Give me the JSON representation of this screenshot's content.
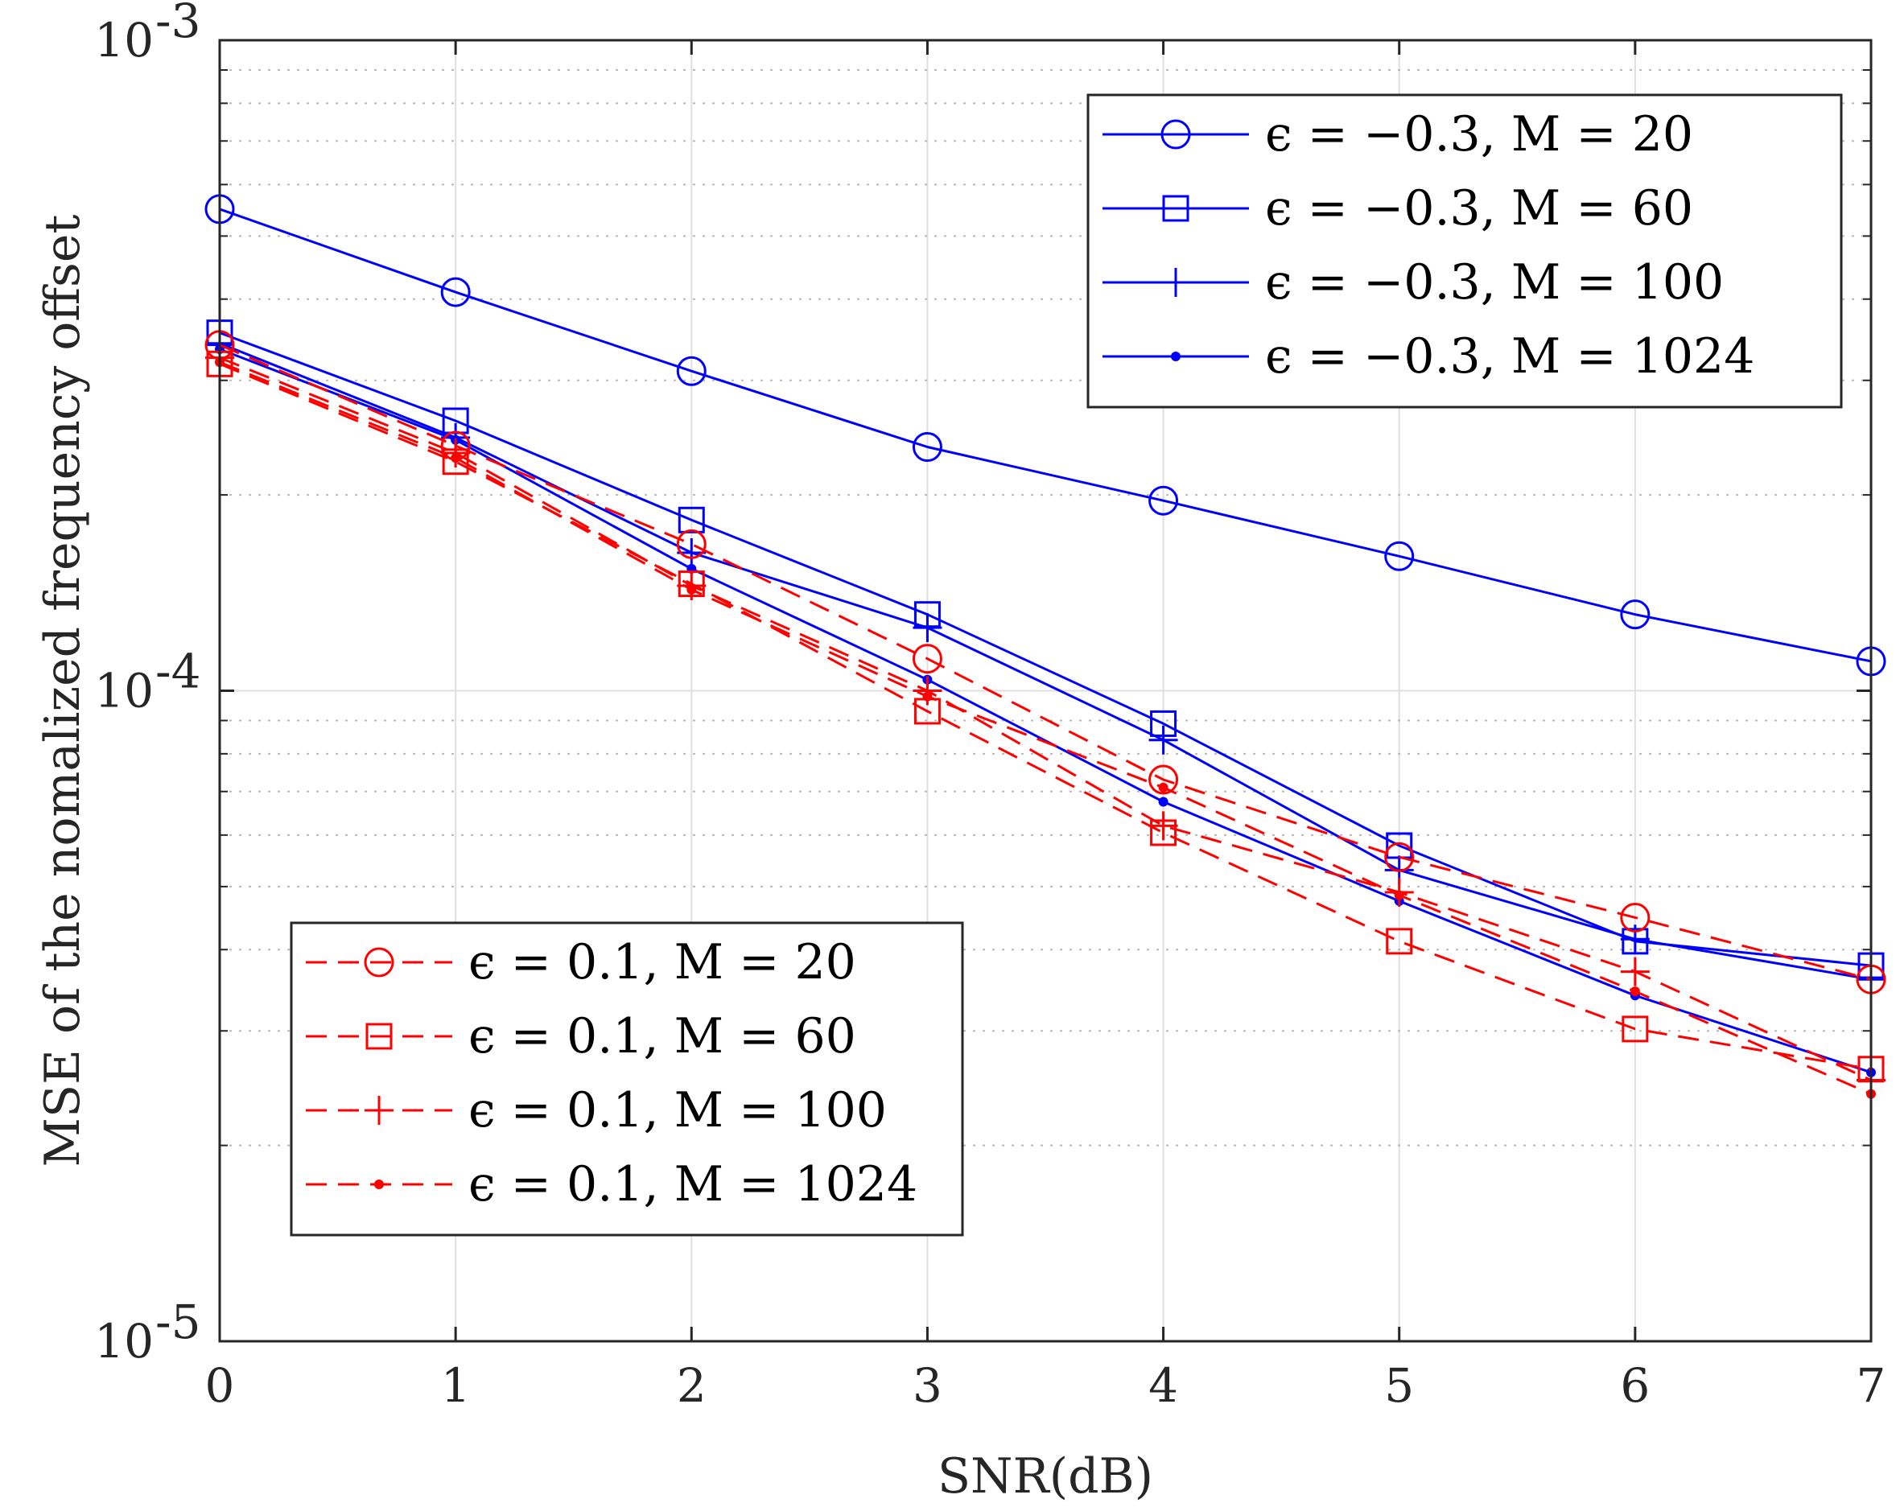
{
  "chart_data": {
    "type": "line",
    "title": "",
    "xlabel": "SNR(dB)",
    "ylabel": "MSE of the nomalized frequency offset",
    "x": [
      0,
      1,
      2,
      3,
      4,
      5,
      6,
      7
    ],
    "xlim": [
      0,
      7
    ],
    "ylim": [
      1e-05,
      0.001
    ],
    "yscale": "log",
    "grid": true,
    "xticks": [
      "0",
      "1",
      "2",
      "3",
      "4",
      "5",
      "6",
      "7"
    ],
    "yticks": [
      {
        "value": 0.001,
        "base": "10",
        "exp": "-3"
      },
      {
        "value": 0.0001,
        "base": "10",
        "exp": "-4"
      },
      {
        "value": 1e-05,
        "base": "10",
        "exp": "-5"
      }
    ],
    "legends": [
      {
        "placement": "top-right",
        "entries": [
          "ϵ = −0.3, M = 20",
          "ϵ = −0.3, M = 60",
          "ϵ = −0.3, M = 100",
          "ϵ = −0.3, M = 1024"
        ]
      },
      {
        "placement": "bottom-left",
        "entries": [
          "ϵ = 0.1, M = 20",
          "ϵ = 0.1, M = 60",
          "ϵ = 0.1, M = 100",
          "ϵ = 0.1, M = 1024"
        ]
      }
    ],
    "series": [
      {
        "name": "ϵ = −0.3, M = 20",
        "color": "#0000ff",
        "dash": "solid",
        "marker": "circle",
        "legend": 0,
        "values": [
          0.00055,
          0.00041,
          0.00031,
          0.000237,
          0.000196,
          0.000161,
          0.000131,
          0.000111
        ]
      },
      {
        "name": "ϵ = −0.3, M = 60",
        "color": "#0000ff",
        "dash": "solid",
        "marker": "square",
        "legend": 0,
        "values": [
          0.000355,
          0.00026,
          0.000183,
          0.000131,
          8.9e-05,
          5.78e-05,
          4.12e-05,
          3.78e-05
        ]
      },
      {
        "name": "ϵ = −0.3, M = 100",
        "color": "#0000ff",
        "dash": "solid",
        "marker": "plus",
        "legend": 0,
        "values": [
          0.000342,
          0.000245,
          0.000163,
          0.000125,
          8.4e-05,
          5.3e-05,
          4.15e-05,
          3.6e-05
        ]
      },
      {
        "name": "ϵ = −0.3, M = 1024",
        "color": "#0000ff",
        "dash": "solid",
        "marker": "dot",
        "legend": 0,
        "values": [
          0.000335,
          0.000243,
          0.000154,
          0.000104,
          6.75e-05,
          4.75e-05,
          3.4e-05,
          2.59e-05
        ]
      },
      {
        "name": "ϵ = 0.1, M = 20",
        "color": "#ff0000",
        "dash": "dash",
        "marker": "circle",
        "legend": 1,
        "values": [
          0.00034,
          0.000238,
          0.000168,
          0.000112,
          7.3e-05,
          5.55e-05,
          4.48e-05,
          3.6e-05
        ]
      },
      {
        "name": "ϵ = 0.1, M = 60",
        "color": "#ff0000",
        "dash": "dash",
        "marker": "square",
        "legend": 1,
        "values": [
          0.000318,
          0.000225,
          0.000146,
          9.3e-05,
          6.05e-05,
          4.12e-05,
          3.02e-05,
          2.62e-05
        ]
      },
      {
        "name": "ϵ = 0.1, M = 100",
        "color": "#ff0000",
        "dash": "dash",
        "marker": "plus",
        "legend": 1,
        "values": [
          0.000325,
          0.000232,
          0.000145,
          0.0001,
          6.2e-05,
          4.9e-05,
          3.7e-05,
          2.52e-05
        ]
      },
      {
        "name": "ϵ = 0.1, M = 1024",
        "color": "#ff0000",
        "dash": "dash",
        "marker": "dot",
        "legend": 1,
        "values": [
          0.00032,
          0.000228,
          0.000143,
          9.8e-05,
          7.1e-05,
          4.85e-05,
          3.45e-05,
          2.4e-05
        ]
      }
    ]
  }
}
